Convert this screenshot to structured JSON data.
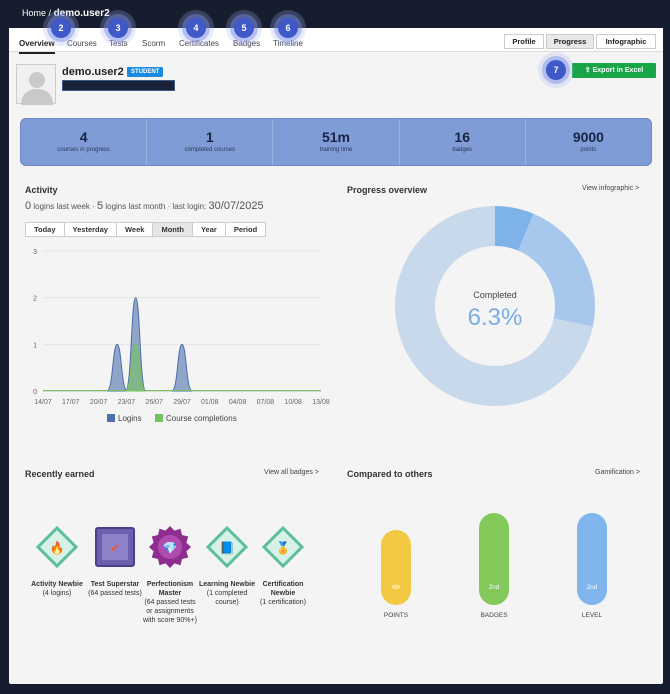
{
  "breadcrumb": {
    "home": "Home",
    "separator": "/",
    "current": "demo.user2"
  },
  "tabs": [
    "Overview",
    "Courses",
    "Tests",
    "Scorm",
    "Certificates",
    "Badges",
    "Timeline"
  ],
  "tour_markers": [
    "2",
    "3",
    "4",
    "5",
    "6",
    "7"
  ],
  "view_switch": [
    "Profile",
    "Progress",
    "Infographic"
  ],
  "user": {
    "name": "demo.user2",
    "role_badge": "STUDENT"
  },
  "export_label": "Export in Excel",
  "stats": [
    {
      "value": "4",
      "label": "courses in progress"
    },
    {
      "value": "1",
      "label": "completed courses"
    },
    {
      "value": "51m",
      "label": "training time"
    },
    {
      "value": "16",
      "label": "badges"
    },
    {
      "value": "9000",
      "label": "points"
    }
  ],
  "activity": {
    "title": "Activity",
    "logins_week": "0",
    "logins_week_label": "logins last week",
    "sep": "·",
    "logins_month": "5",
    "logins_month_label": "logins last month",
    "last_login_label": "· last login:",
    "last_login": "30/07/2025",
    "ranges": [
      "Today",
      "Yesterday",
      "Week",
      "Month",
      "Year",
      "Period"
    ],
    "legend": [
      "Logins",
      "Course completions"
    ]
  },
  "chart_data": {
    "type": "area",
    "x": [
      "14/07",
      "17/07",
      "20/07",
      "23/07",
      "26/07",
      "29/07",
      "01/08",
      "04/08",
      "07/08",
      "10/08",
      "13/08"
    ],
    "yticks": [
      "0",
      "1",
      "2",
      "3"
    ],
    "ylim": [
      0,
      3
    ],
    "series": [
      {
        "name": "Logins",
        "color": "#4d6faa",
        "peaks": [
          {
            "day": 22,
            "value": 1
          },
          {
            "day": 24,
            "value": 2
          },
          {
            "day": 29,
            "value": 1
          }
        ]
      },
      {
        "name": "Course completions",
        "color": "#78c15f",
        "peaks": [
          {
            "day": 24,
            "value": 1
          }
        ]
      }
    ]
  },
  "progress": {
    "title": "Progress overview",
    "link": "View infographic >",
    "center_label": "Completed",
    "center_value": "6.3%",
    "slices": [
      {
        "value": 6.3,
        "color": "#7eb3ea"
      },
      {
        "value": 22.0,
        "color": "#a7c8ec"
      },
      {
        "value": 71.7,
        "color": "#c8d9ec"
      }
    ]
  },
  "recently_earned": {
    "title": "Recently earned",
    "link": "View all badges >",
    "badges": [
      {
        "name": "Activity Newbie",
        "desc": "(4 logins)",
        "icon": "flame-icon",
        "shape": "diamond",
        "color": "#5bbf9b",
        "glyph": "🔥"
      },
      {
        "name": "Test Superstar",
        "desc": "(64 passed tests)",
        "icon": "test-icon",
        "shape": "square",
        "color": "#6b5fb0",
        "glyph": "✔"
      },
      {
        "name": "Perfectionism Master",
        "desc": "(64 passed tests or assignments with score 90%+)",
        "icon": "gem-icon",
        "shape": "star",
        "color": "#8e2d8f",
        "glyph": "💎"
      },
      {
        "name": "Learning Newbie",
        "desc": "(1 completed course)",
        "icon": "book-icon",
        "shape": "diamond",
        "color": "#5bbf9b",
        "glyph": "📘"
      },
      {
        "name": "Certification Newbie",
        "desc": "(1 certification)",
        "icon": "certificate-icon",
        "shape": "diamond",
        "color": "#5bbf9b",
        "glyph": "🏅"
      }
    ]
  },
  "compared": {
    "title": "Compared to others",
    "link": "Gamification >",
    "pills": [
      {
        "rank": "4th",
        "label": "POINTS",
        "color": "#f3c944",
        "level": 0.75
      },
      {
        "rank": "2nd",
        "label": "BADGES",
        "color": "#83c95a",
        "level": 0.92
      },
      {
        "rank": "2nd",
        "label": "LEVEL",
        "color": "#7fb5ec",
        "level": 0.92
      }
    ]
  }
}
